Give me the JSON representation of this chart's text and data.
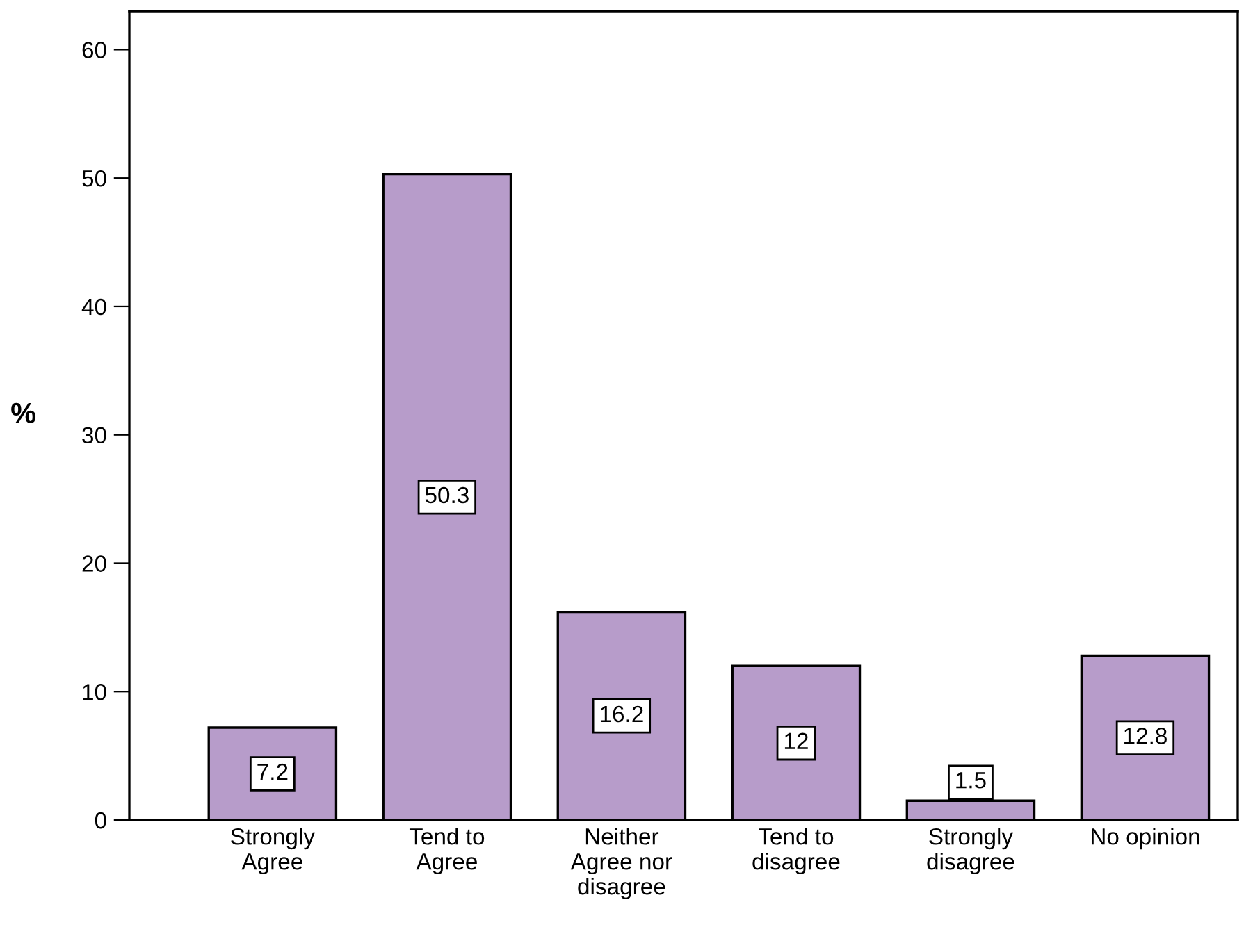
{
  "chart_data": {
    "type": "bar",
    "ylabel": "%",
    "categories": [
      "Strongly\nAgree",
      "Tend to\nAgree",
      "Neither\nAgree nor\ndisagree",
      "Tend to\ndisagree",
      "Strongly\ndisagree",
      "No opinion"
    ],
    "values": [
      7.2,
      50.3,
      16.2,
      12,
      1.5,
      12.8
    ],
    "color": "#b79cca",
    "ylim": [
      0,
      63
    ],
    "yticks": [
      0,
      10,
      20,
      30,
      40,
      50,
      60
    ],
    "data_labels": true,
    "grid": false
  }
}
